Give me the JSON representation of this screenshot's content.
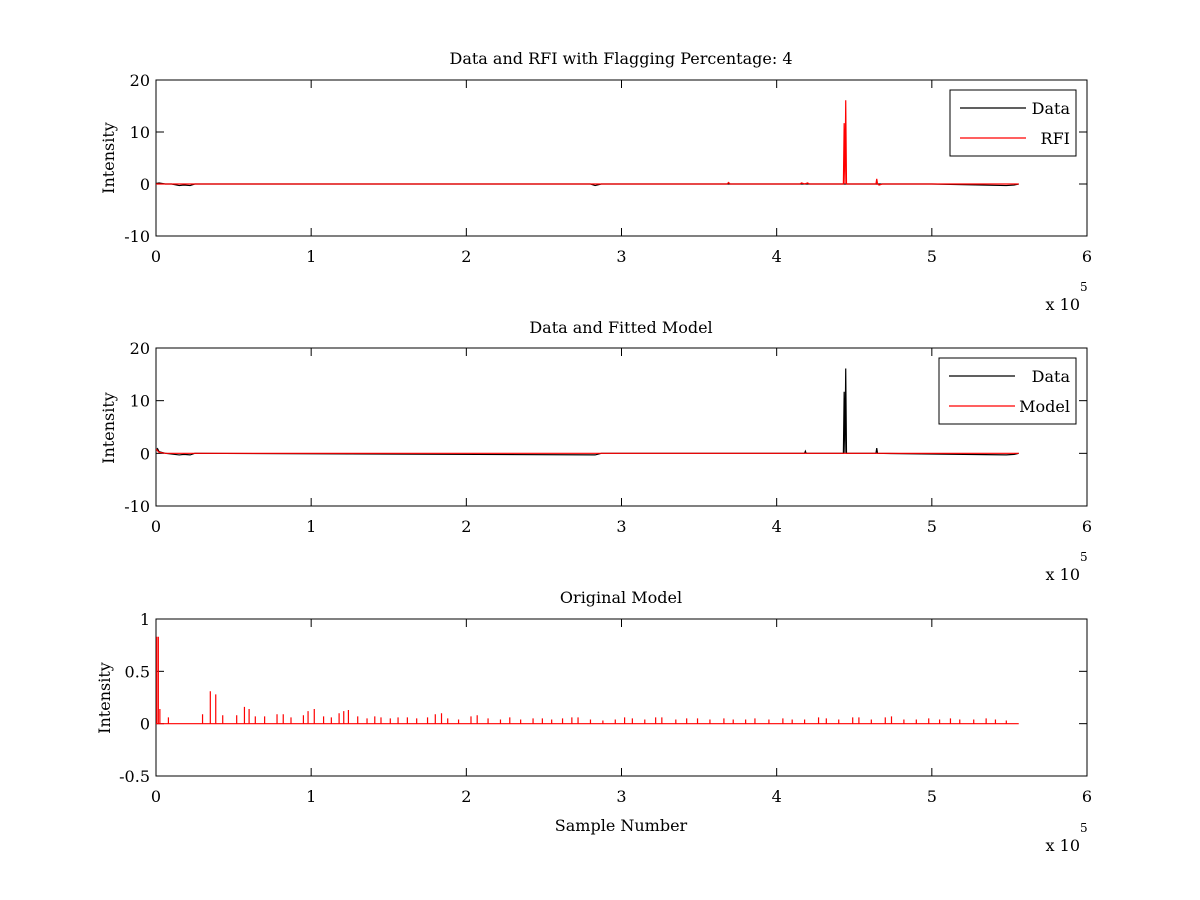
{
  "chart_data": [
    {
      "id": "p1",
      "type": "line",
      "title": "Data and RFI with Flagging Percentage: 4",
      "xlabel": "",
      "ylabel": "Intensity",
      "xlim": [
        0,
        600000
      ],
      "ylim": [
        -10,
        20
      ],
      "xticks": [
        0,
        100000,
        200000,
        300000,
        400000,
        500000,
        600000
      ],
      "xtick_labels": [
        "0",
        "1",
        "2",
        "3",
        "4",
        "5",
        "6"
      ],
      "yticks": [
        -10,
        0,
        10,
        20
      ],
      "ytick_labels": [
        "-10",
        "0",
        "10",
        "20"
      ],
      "x_multiplier": {
        "base": "x 10",
        "exponent": "5"
      },
      "legend_position": "top-right",
      "series": [
        {
          "name": "Data",
          "color": "#000000",
          "points": [
            [
              0,
              0.1
            ],
            [
              2000,
              0.2
            ],
            [
              6000,
              0.0
            ],
            [
              10000,
              0.0
            ],
            [
              15000,
              -0.3
            ],
            [
              18000,
              -0.2
            ],
            [
              22000,
              -0.3
            ],
            [
              25000,
              0.0
            ],
            [
              280000,
              0.0
            ],
            [
              283000,
              -0.3
            ],
            [
              287000,
              0.0
            ],
            [
              370000,
              0.0
            ],
            [
              420000,
              0.0
            ],
            [
              440000,
              0.0
            ],
            [
              445000,
              0.0
            ],
            [
              500000,
              0.0
            ],
            [
              548000,
              -0.3
            ],
            [
              553000,
              -0.2
            ],
            [
              556000,
              0.0
            ]
          ]
        },
        {
          "name": "RFI",
          "color": "#ff0000",
          "points": [
            [
              0,
              0.0
            ],
            [
              368000,
              0.0
            ],
            [
              369000,
              0.3
            ],
            [
              370000,
              0.0
            ],
            [
              415000,
              0.0
            ],
            [
              416000,
              0.2
            ],
            [
              418000,
              0.0
            ],
            [
              420000,
              0.2
            ],
            [
              421000,
              0.0
            ],
            [
              443000,
              0.0
            ],
            [
              443500,
              11.7
            ],
            [
              444000,
              0.0
            ],
            [
              444500,
              16.1
            ],
            [
              445000,
              0.0
            ],
            [
              464000,
              0.0
            ],
            [
              464500,
              1.0
            ],
            [
              465000,
              0.0
            ],
            [
              466000,
              -0.2
            ],
            [
              468000,
              0.0
            ],
            [
              556000,
              0.0
            ]
          ]
        }
      ]
    },
    {
      "id": "p2",
      "type": "line",
      "title": "Data and Fitted Model",
      "xlabel": "",
      "ylabel": "Intensity",
      "xlim": [
        0,
        600000
      ],
      "ylim": [
        -10,
        20
      ],
      "xticks": [
        0,
        100000,
        200000,
        300000,
        400000,
        500000,
        600000
      ],
      "xtick_labels": [
        "0",
        "1",
        "2",
        "3",
        "4",
        "5",
        "6"
      ],
      "yticks": [
        -10,
        0,
        10,
        20
      ],
      "ytick_labels": [
        "-10",
        "0",
        "10",
        "20"
      ],
      "x_multiplier": {
        "base": "x 10",
        "exponent": "5"
      },
      "legend_position": "top-right",
      "series": [
        {
          "name": "Data",
          "color": "#000000",
          "points": [
            [
              0,
              0.6
            ],
            [
              1000,
              0.9
            ],
            [
              2000,
              0.3
            ],
            [
              6000,
              0.0
            ],
            [
              15000,
              -0.3
            ],
            [
              18000,
              -0.2
            ],
            [
              22000,
              -0.3
            ],
            [
              25000,
              0.0
            ],
            [
              283000,
              -0.3
            ],
            [
              287000,
              0.0
            ],
            [
              418000,
              0.0
            ],
            [
              418500,
              0.4
            ],
            [
              419000,
              0.0
            ],
            [
              443000,
              0.0
            ],
            [
              443500,
              11.7
            ],
            [
              444000,
              0.0
            ],
            [
              444500,
              16.1
            ],
            [
              445000,
              0.0
            ],
            [
              464000,
              0.0
            ],
            [
              464500,
              1.0
            ],
            [
              465000,
              0.0
            ],
            [
              548000,
              -0.3
            ],
            [
              553000,
              -0.2
            ],
            [
              556000,
              0.0
            ]
          ]
        },
        {
          "name": "Model",
          "color": "#ff0000",
          "points": [
            [
              0,
              0.8
            ],
            [
              2000,
              0.2
            ],
            [
              6000,
              0.0
            ],
            [
              556000,
              0.0
            ]
          ]
        }
      ]
    },
    {
      "id": "p3",
      "type": "line",
      "title": "Original Model",
      "xlabel": "Sample Number",
      "ylabel": "Intensity",
      "xlim": [
        0,
        600000
      ],
      "ylim": [
        -0.5,
        1
      ],
      "xticks": [
        0,
        100000,
        200000,
        300000,
        400000,
        500000,
        600000
      ],
      "xtick_labels": [
        "0",
        "1",
        "2",
        "3",
        "4",
        "5",
        "6"
      ],
      "yticks": [
        -0.5,
        0,
        0.5,
        1
      ],
      "ytick_labels": [
        "-0.5",
        "0",
        "0.5",
        "1"
      ],
      "x_multiplier": {
        "base": "x 10",
        "exponent": "5"
      },
      "legend_position": "none",
      "series": [
        {
          "name": "",
          "color": "#ff0000",
          "baseline": 0,
          "x_end": 556000,
          "spikes": [
            [
              500,
              0.83
            ],
            [
              1500,
              0.83
            ],
            [
              2500,
              0.14
            ],
            [
              8000,
              0.06
            ],
            [
              30000,
              0.09
            ],
            [
              35000,
              0.31
            ],
            [
              38500,
              0.28
            ],
            [
              43000,
              0.08
            ],
            [
              52000,
              0.08
            ],
            [
              57000,
              0.16
            ],
            [
              60000,
              0.14
            ],
            [
              64000,
              0.07
            ],
            [
              70000,
              0.07
            ],
            [
              78000,
              0.09
            ],
            [
              82000,
              0.09
            ],
            [
              87000,
              0.06
            ],
            [
              95000,
              0.08
            ],
            [
              98000,
              0.12
            ],
            [
              102000,
              0.14
            ],
            [
              108000,
              0.07
            ],
            [
              113000,
              0.06
            ],
            [
              118000,
              0.1
            ],
            [
              121000,
              0.12
            ],
            [
              124000,
              0.13
            ],
            [
              130000,
              0.07
            ],
            [
              136000,
              0.05
            ],
            [
              141000,
              0.07
            ],
            [
              145000,
              0.06
            ],
            [
              151000,
              0.05
            ],
            [
              156000,
              0.06
            ],
            [
              162000,
              0.06
            ],
            [
              168000,
              0.05
            ],
            [
              175000,
              0.06
            ],
            [
              180000,
              0.09
            ],
            [
              184000,
              0.1
            ],
            [
              188000,
              0.05
            ],
            [
              195000,
              0.04
            ],
            [
              203000,
              0.07
            ],
            [
              207000,
              0.08
            ],
            [
              214000,
              0.05
            ],
            [
              222000,
              0.04
            ],
            [
              228000,
              0.06
            ],
            [
              235000,
              0.04
            ],
            [
              243000,
              0.05
            ],
            [
              249000,
              0.05
            ],
            [
              255000,
              0.04
            ],
            [
              262000,
              0.05
            ],
            [
              268000,
              0.06
            ],
            [
              272000,
              0.06
            ],
            [
              280000,
              0.04
            ],
            [
              288000,
              0.03
            ],
            [
              296000,
              0.04
            ],
            [
              302000,
              0.06
            ],
            [
              307000,
              0.05
            ],
            [
              315000,
              0.04
            ],
            [
              322000,
              0.06
            ],
            [
              326000,
              0.06
            ],
            [
              335000,
              0.04
            ],
            [
              342000,
              0.05
            ],
            [
              349000,
              0.05
            ],
            [
              357000,
              0.04
            ],
            [
              366000,
              0.05
            ],
            [
              372000,
              0.04
            ],
            [
              380000,
              0.04
            ],
            [
              386000,
              0.05
            ],
            [
              395000,
              0.04
            ],
            [
              404000,
              0.05
            ],
            [
              410000,
              0.04
            ],
            [
              418000,
              0.04
            ],
            [
              427000,
              0.06
            ],
            [
              432000,
              0.05
            ],
            [
              440000,
              0.04
            ],
            [
              449000,
              0.06
            ],
            [
              453000,
              0.06
            ],
            [
              461000,
              0.04
            ],
            [
              470000,
              0.06
            ],
            [
              474000,
              0.07
            ],
            [
              482000,
              0.04
            ],
            [
              490000,
              0.04
            ],
            [
              498000,
              0.05
            ],
            [
              505000,
              0.04
            ],
            [
              512000,
              0.05
            ],
            [
              518000,
              0.04
            ],
            [
              527000,
              0.04
            ],
            [
              535000,
              0.05
            ],
            [
              541000,
              0.04
            ],
            [
              548000,
              0.03
            ]
          ]
        }
      ]
    }
  ]
}
